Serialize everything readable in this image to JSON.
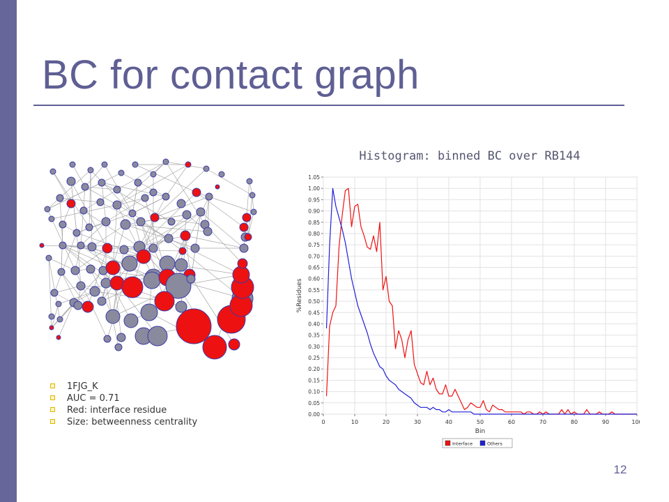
{
  "slide": {
    "title": "BC for contact graph",
    "histogram_caption": "Histogram: binned BC over RB144",
    "bullets": [
      "1FJG_K",
      "AUC = 0.71",
      "Red: interface residue",
      "Size: betweenness centrality"
    ],
    "page_number": "12"
  },
  "colors": {
    "accent": "#5f5f94",
    "sidebar": "#66669a",
    "interface": "#ee1111",
    "others": "#1f1fd6",
    "node_gray": "#8a8a9e",
    "bullet": "#e0b400"
  },
  "chart_data": {
    "type": "line",
    "xlabel": "Bin",
    "ylabel": "%Residues",
    "xlim": [
      0,
      100
    ],
    "ylim": [
      0,
      1.05
    ],
    "x_ticks": [
      0,
      10,
      20,
      30,
      40,
      50,
      60,
      70,
      80,
      90,
      100
    ],
    "y_ticks": [
      "0.00",
      "0.05",
      "0.10",
      "0.15",
      "0.20",
      "0.25",
      "0.30",
      "0.35",
      "0.40",
      "0.45",
      "0.50",
      "0.55",
      "0.60",
      "0.65",
      "0.70",
      "0.75",
      "0.80",
      "0.85",
      "0.90",
      "0.95",
      "1.00",
      "1.05"
    ],
    "grid": true,
    "legend_position": "bottom-center",
    "series": [
      {
        "name": "Interface",
        "color": "#ee1111",
        "x": [
          1,
          2,
          3,
          4,
          5,
          6,
          7,
          8,
          9,
          10,
          11,
          12,
          13,
          14,
          15,
          16,
          17,
          18,
          19,
          20,
          21,
          22,
          23,
          24,
          25,
          26,
          27,
          28,
          29,
          30,
          31,
          32,
          33,
          34,
          35,
          36,
          37,
          38,
          39,
          40,
          41,
          42,
          43,
          44,
          45,
          46,
          47,
          48,
          49,
          50,
          51,
          52,
          53,
          54,
          55,
          56,
          57,
          58,
          59,
          60,
          61,
          62,
          63,
          64,
          65,
          66,
          67,
          68,
          69,
          70,
          71,
          72,
          73,
          74,
          75,
          76,
          77,
          78,
          79,
          80,
          81,
          82,
          83,
          84,
          85,
          86,
          87,
          88,
          89,
          90,
          91,
          92,
          93,
          94,
          95,
          96,
          97,
          98,
          99,
          100
        ],
        "values": [
          0.08,
          0.39,
          0.45,
          0.48,
          0.74,
          0.88,
          0.99,
          1.0,
          0.83,
          0.92,
          0.93,
          0.83,
          0.79,
          0.74,
          0.73,
          0.79,
          0.72,
          0.85,
          0.55,
          0.61,
          0.5,
          0.48,
          0.29,
          0.37,
          0.33,
          0.25,
          0.33,
          0.37,
          0.22,
          0.18,
          0.14,
          0.13,
          0.19,
          0.13,
          0.16,
          0.11,
          0.09,
          0.09,
          0.13,
          0.08,
          0.08,
          0.11,
          0.08,
          0.05,
          0.02,
          0.03,
          0.05,
          0.04,
          0.03,
          0.03,
          0.06,
          0.02,
          0.01,
          0.04,
          0.03,
          0.02,
          0.02,
          0.01,
          0.01,
          0.01,
          0.01,
          0.01,
          0.01,
          0.0,
          0.01,
          0.01,
          0.0,
          0.0,
          0.01,
          0.0,
          0.01,
          0.0,
          0.0,
          0.0,
          0.0,
          0.02,
          0.0,
          0.02,
          0.0,
          0.01,
          0.0,
          0.0,
          0.0,
          0.02,
          0.0,
          0.0,
          0.0,
          0.01,
          0.0,
          0.0,
          0.0,
          0.01,
          0.0,
          0.0,
          0.0,
          0.0,
          0.0,
          0.0,
          0.0,
          0.0
        ]
      },
      {
        "name": "Others",
        "color": "#1f1fd6",
        "x": [
          1,
          2,
          3,
          4,
          5,
          6,
          7,
          8,
          9,
          10,
          11,
          12,
          13,
          14,
          15,
          16,
          17,
          18,
          19,
          20,
          21,
          22,
          23,
          24,
          25,
          26,
          27,
          28,
          29,
          30,
          31,
          32,
          33,
          34,
          35,
          36,
          37,
          38,
          39,
          40,
          41,
          42,
          43,
          44,
          45,
          46,
          47,
          48,
          49,
          50,
          51,
          52,
          53,
          54,
          55,
          56,
          57,
          58,
          59,
          60,
          61,
          62,
          63,
          64,
          65,
          66,
          67,
          68,
          69,
          70,
          71,
          72,
          73,
          74,
          75,
          76,
          77,
          78,
          79,
          80,
          81,
          82,
          83,
          84,
          85,
          86,
          87,
          88,
          89,
          90,
          91,
          92,
          93,
          94,
          95,
          96,
          97,
          98,
          99,
          100
        ],
        "values": [
          0.38,
          0.75,
          1.0,
          0.92,
          0.87,
          0.82,
          0.76,
          0.68,
          0.6,
          0.54,
          0.48,
          0.44,
          0.4,
          0.36,
          0.31,
          0.27,
          0.24,
          0.21,
          0.2,
          0.17,
          0.15,
          0.14,
          0.13,
          0.11,
          0.1,
          0.09,
          0.08,
          0.07,
          0.05,
          0.04,
          0.03,
          0.03,
          0.03,
          0.02,
          0.03,
          0.02,
          0.02,
          0.01,
          0.01,
          0.02,
          0.01,
          0.01,
          0.01,
          0.01,
          0.01,
          0.01,
          0.01,
          0.0,
          0.0,
          0.0,
          0.0,
          0.0,
          0.0,
          0.0,
          0.0,
          0.0,
          0.0,
          0.0,
          0.0,
          0.0,
          0.0,
          0.0,
          0.0,
          0.0,
          0.0,
          0.0,
          0.0,
          0.0,
          0.0,
          0.0,
          0.0,
          0.0,
          0.0,
          0.0,
          0.0,
          0.0,
          0.0,
          0.0,
          0.0,
          0.0,
          0.0,
          0.0,
          0.0,
          0.0,
          0.0,
          0.0,
          0.0,
          0.0,
          0.0,
          0.0,
          0.0,
          0.0,
          0.0,
          0.0,
          0.0,
          0.0,
          0.0,
          0.0,
          0.0,
          0.0
        ]
      }
    ]
  }
}
